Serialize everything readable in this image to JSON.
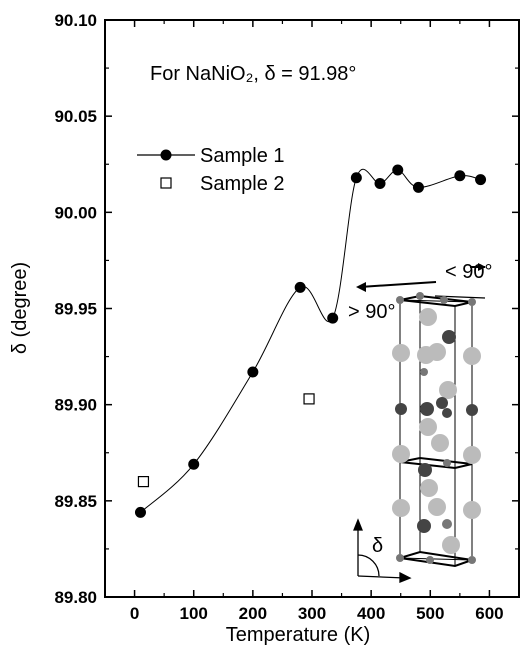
{
  "chart_data": {
    "type": "scatter",
    "title": "For NaNiO₂, δ = 91.98°",
    "xlabel": "Temperature (K)",
    "ylabel": "δ (degree)",
    "xlim": [
      -50,
      650
    ],
    "ylim": [
      89.8,
      90.1
    ],
    "x_ticks": [
      0,
      100,
      200,
      300,
      400,
      500,
      600
    ],
    "y_ticks": [
      89.8,
      89.85,
      89.9,
      89.95,
      90.0,
      90.05,
      90.1
    ],
    "x_tick_labels": [
      "0",
      "100",
      "200",
      "300",
      "400",
      "500",
      "600"
    ],
    "y_tick_labels": [
      "89.80",
      "89.85",
      "89.90",
      "89.95",
      "90.00",
      "90.05",
      "90.10"
    ],
    "legend_position": "top-left",
    "grid": false,
    "series": [
      {
        "name": "Sample 1",
        "marker": "filled-circle",
        "line": "smooth",
        "color": "#000000",
        "x": [
          10,
          100,
          200,
          280,
          335,
          375,
          415,
          445,
          480,
          550,
          585
        ],
        "y": [
          89.844,
          89.869,
          89.917,
          89.961,
          89.945,
          90.018,
          90.015,
          90.022,
          90.013,
          90.019,
          90.017
        ]
      },
      {
        "name": "Sample 2",
        "marker": "open-square",
        "line": "none",
        "color": "#000000",
        "x": [
          15,
          295
        ],
        "y": [
          89.86,
          89.903
        ]
      }
    ],
    "annotations": {
      "gt90": "> 90°",
      "lt90": "< 90°",
      "delta": "δ"
    }
  }
}
